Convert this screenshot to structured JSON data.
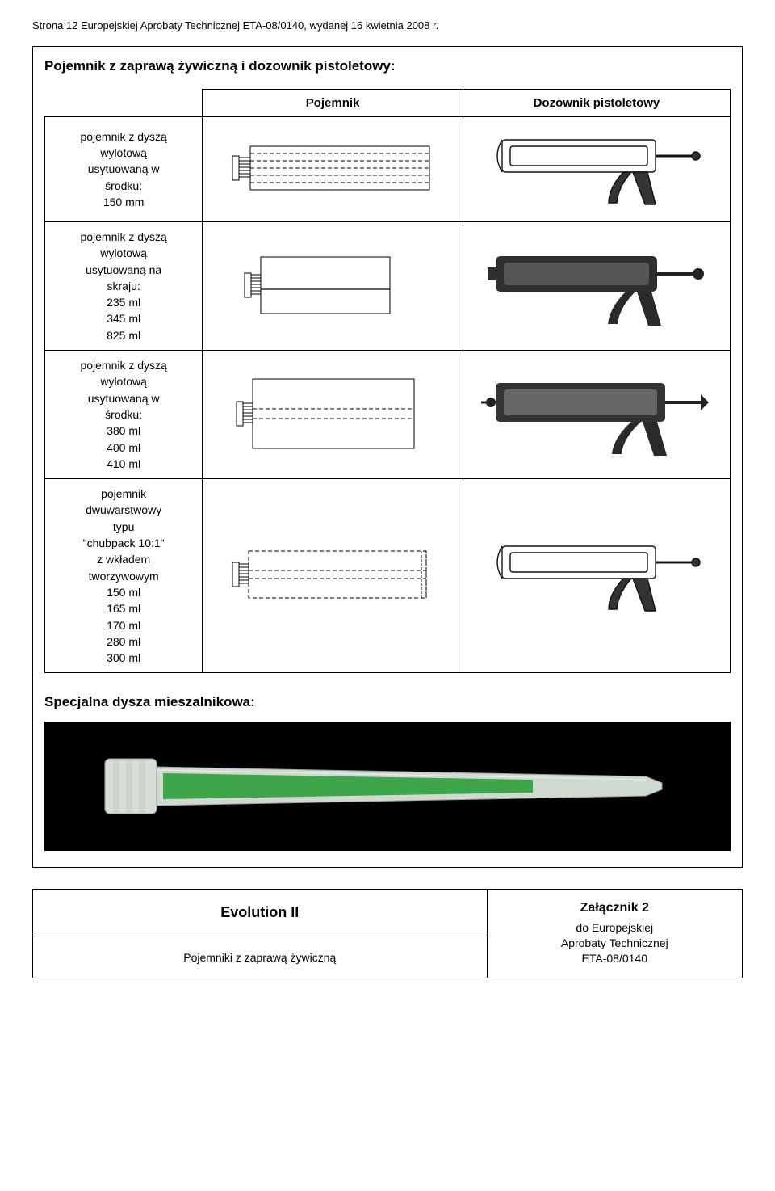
{
  "header_text": "Strona 12 Europejskiej Aprobaty Technicznej ETA-08/0140, wydanej 16 kwietnia 2008 r.",
  "section_title": "Pojemnik z zaprawą żywiczną i dozownik pistoletowy:",
  "table": {
    "col_pojemnik": "Pojemnik",
    "col_dozownik": "Dozownik pistoletowy",
    "rows": [
      {
        "label": "pojemnik z dyszą\nwylotową\nusytuowaną w\nśrodku:\n150 mm"
      },
      {
        "label": "pojemnik z dyszą\nwylotową\nusytuowaną na\nskraju:\n235 ml\n345 ml\n825 ml"
      },
      {
        "label": "pojemnik z dyszą\nwylotową\nusytuowaną w\nśrodku:\n380 ml\n400 ml\n410 ml"
      },
      {
        "label": "pojemnik\ndwuwarstwowy\ntypu\n\"chubpack 10:1\"\nz wkładem\ntworzywowym\n150 ml\n165 ml\n170 ml\n280 ml\n300 ml"
      }
    ]
  },
  "nozzle_title": "Specjalna dysza mieszalnikowa:",
  "footer": {
    "evolution": "Evolution II",
    "pojemniki": "Pojemniki z zaprawą żywiczną",
    "zalacznik": "Załącznik 2",
    "do_europe": "do Europejskiej\nAprobaty Technicznej\nETA-08/0140"
  },
  "colors": {
    "stroke": "#000000",
    "dash": "4,3",
    "gun_fill": "#3a3a3a",
    "gun_stroke": "#111",
    "nozzle_tube_fill": "#c8d8c8",
    "nozzle_tube_stroke": "#888",
    "nozzle_mixer_fill": "#2a9d3a",
    "nozzle_cap_fill": "#d8e0d8"
  }
}
